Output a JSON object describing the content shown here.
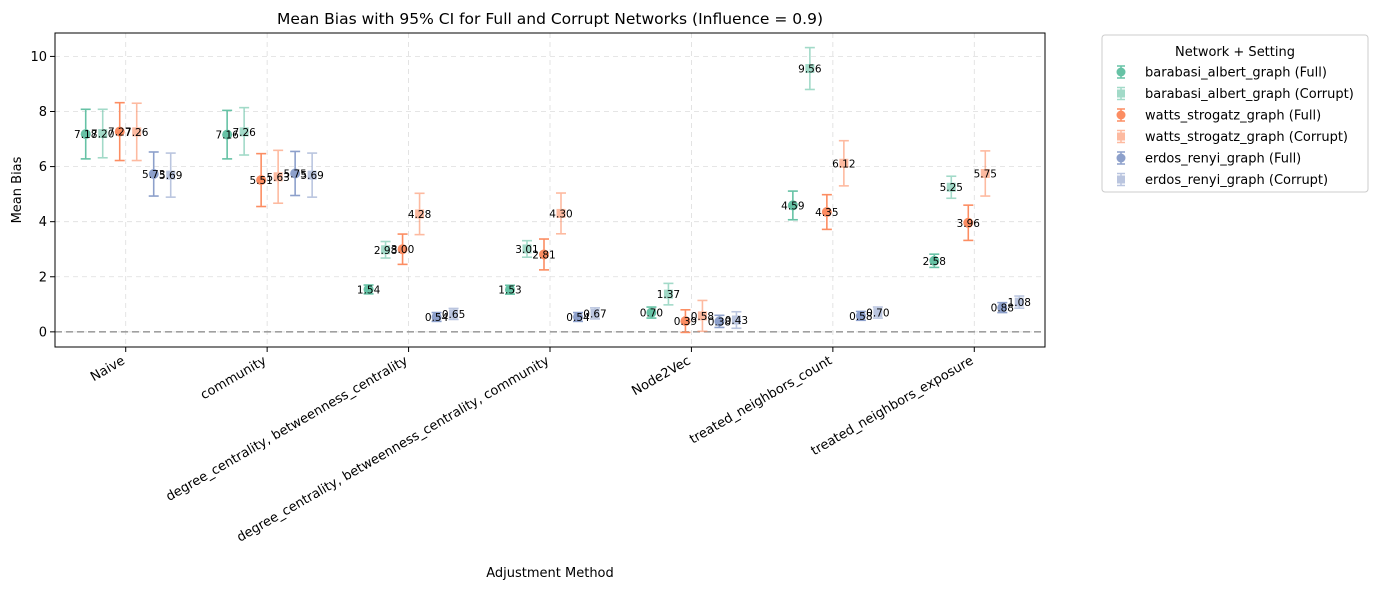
{
  "chart_data": {
    "type": "scatter",
    "title": "Mean Bias with 95% CI for Full and Corrupt Networks (Influence = 0.9)",
    "xlabel": "Adjustment Method",
    "ylabel": "Mean Bias",
    "ylim": [
      -0.55,
      10.85
    ],
    "yticks": [
      "0",
      "2",
      "4",
      "6",
      "8",
      "10"
    ],
    "grid": true,
    "reference_line": 0,
    "legend_title": "Network + Setting",
    "legend_position": "outside-right",
    "categories": [
      "Naive",
      "community",
      "degree_centrality, betweenness_centrality",
      "degree_centrality, betweenness_centrality, community",
      "Node2Vec",
      "treated_neighbors_count",
      "treated_neighbors_exposure"
    ],
    "series": [
      {
        "name": "barabasi_albert_graph (Full)",
        "color": "#66c2a5",
        "marker": "circle",
        "alpha": 1.0,
        "values": [
          7.18,
          7.16,
          1.54,
          1.53,
          0.7,
          4.59,
          2.58
        ],
        "ci_low": [
          6.28,
          6.28,
          1.38,
          1.37,
          0.5,
          4.07,
          2.34
        ],
        "ci_high": [
          8.08,
          8.04,
          1.7,
          1.69,
          0.9,
          5.11,
          2.82
        ]
      },
      {
        "name": "barabasi_albert_graph (Corrupt)",
        "color": "#66c2a5",
        "marker": "square",
        "alpha": 0.6,
        "values": [
          7.2,
          7.26,
          2.98,
          3.01,
          1.37,
          9.56,
          5.25
        ],
        "ci_low": [
          6.32,
          6.42,
          2.68,
          2.71,
          0.98,
          8.8,
          4.85
        ],
        "ci_high": [
          8.08,
          8.14,
          3.28,
          3.31,
          1.76,
          10.32,
          5.65
        ]
      },
      {
        "name": "watts_strogatz_graph (Full)",
        "color": "#fc8d62",
        "marker": "circle",
        "alpha": 1.0,
        "values": [
          7.27,
          5.51,
          3.0,
          2.81,
          0.39,
          4.35,
          3.96
        ],
        "ci_low": [
          6.22,
          4.55,
          2.45,
          2.25,
          -0.02,
          3.72,
          3.32
        ],
        "ci_high": [
          8.32,
          6.47,
          3.55,
          3.37,
          0.8,
          4.98,
          4.6
        ]
      },
      {
        "name": "watts_strogatz_graph (Corrupt)",
        "color": "#fc8d62",
        "marker": "square",
        "alpha": 0.6,
        "values": [
          7.26,
          5.63,
          4.28,
          4.3,
          0.58,
          6.12,
          5.75
        ],
        "ci_low": [
          6.22,
          4.67,
          3.53,
          3.56,
          0.02,
          5.3,
          4.93
        ],
        "ci_high": [
          8.3,
          6.59,
          5.03,
          5.04,
          1.14,
          6.94,
          6.57
        ]
      },
      {
        "name": "erdos_renyi_graph (Full)",
        "color": "#8da0cb",
        "marker": "circle",
        "alpha": 1.0,
        "values": [
          5.73,
          5.75,
          0.54,
          0.54,
          0.38,
          0.58,
          0.88
        ],
        "ci_low": [
          4.93,
          4.95,
          0.38,
          0.38,
          0.16,
          0.42,
          0.7
        ],
        "ci_high": [
          6.53,
          6.55,
          0.7,
          0.7,
          0.6,
          0.74,
          1.06
        ]
      },
      {
        "name": "erdos_renyi_graph (Corrupt)",
        "color": "#8da0cb",
        "marker": "square",
        "alpha": 0.6,
        "values": [
          5.69,
          5.69,
          0.65,
          0.67,
          0.43,
          0.7,
          1.08
        ],
        "ci_low": [
          4.89,
          4.89,
          0.45,
          0.47,
          0.13,
          0.5,
          0.86
        ],
        "ci_high": [
          6.49,
          6.49,
          0.85,
          0.87,
          0.73,
          0.9,
          1.3
        ]
      }
    ],
    "labels": [
      [
        "7.18",
        "7.16",
        "1.54",
        "1.53",
        "0.70",
        "4.59",
        "2.58"
      ],
      [
        "7.20",
        "7.26",
        "2.98",
        "3.01",
        "1.37",
        "9.56",
        "5.25"
      ],
      [
        "7.27",
        "5.51",
        "3.00",
        "2.81",
        "0.39",
        "4.35",
        "3.96"
      ],
      [
        "7.26",
        "5.63",
        "4.28",
        "4.30",
        "0.58",
        "6.12",
        "5.75"
      ],
      [
        "5.73",
        "5.75",
        "0.54",
        "0.54",
        "0.38",
        "0.58",
        "0.88"
      ],
      [
        "5.69",
        "5.69",
        "0.65",
        "0.67",
        "0.43",
        "0.70",
        "1.08"
      ]
    ]
  }
}
